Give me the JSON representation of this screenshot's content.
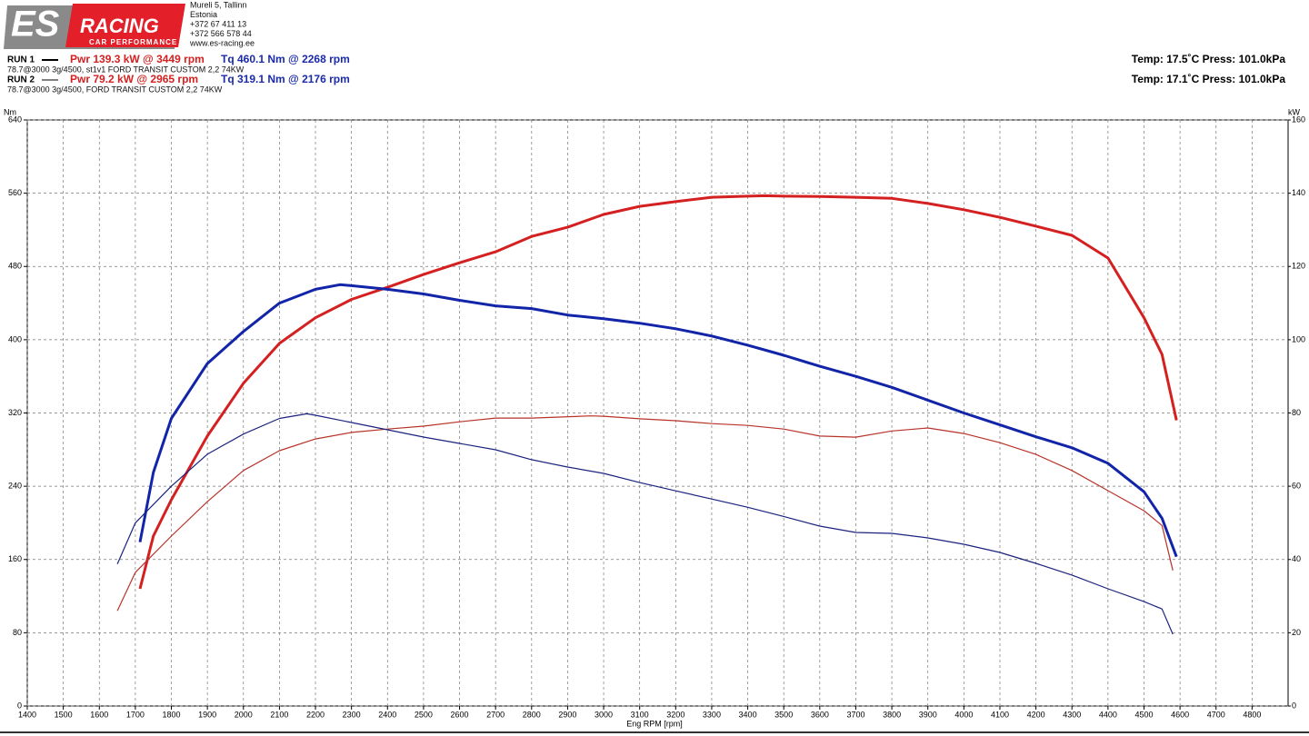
{
  "header": {
    "logo": {
      "brand": "ES",
      "name": "RACING",
      "tagline": "CAR PERFORMANCE"
    },
    "address": [
      "Mureli 5, Tallinn",
      "Estonia",
      "+372 67 411 13",
      "+372 566 578 44",
      "www.es-racing.ee"
    ],
    "runs": [
      {
        "label": "RUN 1",
        "pwr": "Pwr  139.3 kW @ 3449 rpm",
        "tq": "Tq 460.1 Nm @ 2268 rpm",
        "desc": "78.7@3000 3g/4500, st1v1 FORD TRANSIT CUSTOM 2,2 74KW",
        "env": "Temp: 17.5˚C   Press: 101.0kPa"
      },
      {
        "label": "RUN 2",
        "pwr": "Pwr  79.2 kW @ 2965 rpm",
        "tq": "Tq 319.1 Nm @ 2176 rpm",
        "desc": "78.7@3000 3g/4500, FORD TRANSIT CUSTOM 2,2 74KW",
        "env": "Temp: 17.1˚C   Press: 101.0kPa"
      }
    ]
  },
  "chart_data": {
    "type": "line",
    "x_label": "Eng RPM [rpm]",
    "y_label": "Nm",
    "y2_label": "kW",
    "xlim": [
      1400,
      4900
    ],
    "xticks": [
      1400,
      1500,
      1600,
      1700,
      1800,
      1900,
      2000,
      2100,
      2200,
      2300,
      2400,
      2500,
      2600,
      2700,
      2800,
      2900,
      3000,
      3100,
      3200,
      3300,
      3400,
      3500,
      3600,
      3700,
      3800,
      3900,
      4000,
      4100,
      4200,
      4300,
      4400,
      4500,
      4600,
      4700,
      4800
    ],
    "ylim": [
      0,
      640
    ],
    "yticks": [
      0,
      80,
      160,
      240,
      320,
      400,
      480,
      560,
      640
    ],
    "y2lim": [
      0,
      160
    ],
    "y2ticks": [
      0,
      20,
      40,
      60,
      80,
      100,
      120,
      140,
      160
    ],
    "grid": true,
    "series": [
      {
        "color": "#d42020",
        "axis": "y2",
        "x": [
          1713,
          1750,
          1800,
          1900,
          2000,
          2100,
          2200,
          2300,
          2400,
          2500,
          2600,
          2700,
          2800,
          2900,
          3000,
          3100,
          3200,
          3300,
          3400,
          3449,
          3500,
          3600,
          3700,
          3800,
          3900,
          4000,
          4100,
          4200,
          4300,
          4400,
          4500,
          4550,
          4590
        ],
        "values": [
          32,
          46.4,
          56.3,
          73.7,
          88.1,
          99,
          106,
          111,
          114.3,
          117.8,
          121,
          124,
          128.2,
          130.7,
          134.2,
          136.4,
          137.7,
          138.9,
          139.2,
          139.3,
          139.2,
          139.1,
          138.9,
          138.6,
          137.2,
          135.5,
          133.4,
          131,
          128.5,
          122.3,
          106,
          96,
          78
        ]
      },
      {
        "color": "#1224a8",
        "x": [
          1713,
          1750,
          1800,
          1900,
          2000,
          2100,
          2200,
          2268,
          2300,
          2400,
          2500,
          2600,
          2700,
          2800,
          2900,
          3000,
          3100,
          3200,
          3300,
          3400,
          3500,
          3600,
          3700,
          3800,
          3900,
          4000,
          4100,
          4200,
          4300,
          4400,
          4500,
          4550,
          4590
        ],
        "values": [
          179,
          255,
          314,
          374,
          409,
          440,
          455,
          460.1,
          459,
          455,
          450,
          443,
          437,
          434,
          427,
          423,
          418,
          412,
          404,
          394,
          383,
          371,
          360,
          348,
          334,
          320,
          307,
          294,
          282,
          265,
          234,
          205,
          163
        ]
      },
      {
        "color": "#b8332a",
        "axis": "y2",
        "x": [
          1650,
          1700,
          1800,
          1900,
          2000,
          2100,
          2200,
          2300,
          2400,
          2500,
          2600,
          2700,
          2800,
          2965,
          3000,
          3100,
          3200,
          3300,
          3400,
          3500,
          3600,
          3700,
          3800,
          3900,
          4000,
          4100,
          4200,
          4300,
          4400,
          4500,
          4550,
          4580
        ],
        "values": [
          26,
          36.5,
          46.4,
          55.8,
          64.3,
          69.7,
          72.9,
          74.7,
          75.6,
          76.4,
          77.6,
          78.6,
          78.6,
          79.2,
          79.1,
          78.4,
          77.9,
          77.1,
          76.6,
          75.6,
          73.7,
          73.4,
          75.1,
          75.9,
          74.4,
          71.9,
          68.7,
          64.3,
          58.8,
          53.3,
          49.3,
          37
        ]
      },
      {
        "color": "#1a237e",
        "x": [
          1650,
          1700,
          1800,
          1900,
          2000,
          2100,
          2176,
          2200,
          2300,
          2400,
          2500,
          2600,
          2700,
          2800,
          2900,
          3000,
          3100,
          3200,
          3300,
          3400,
          3500,
          3600,
          3700,
          3800,
          3900,
          4000,
          4100,
          4200,
          4300,
          4400,
          4500,
          4550,
          4580
        ],
        "values": [
          155,
          200,
          240,
          275,
          297,
          314,
          319.1,
          317.5,
          309.6,
          301.6,
          293.7,
          286.8,
          279.8,
          269,
          261,
          254,
          244,
          235,
          226,
          217,
          207,
          196.5,
          189.5,
          188.5,
          183.6,
          176.6,
          167.7,
          155.8,
          143,
          128,
          114,
          106,
          78.4
        ]
      }
    ]
  }
}
